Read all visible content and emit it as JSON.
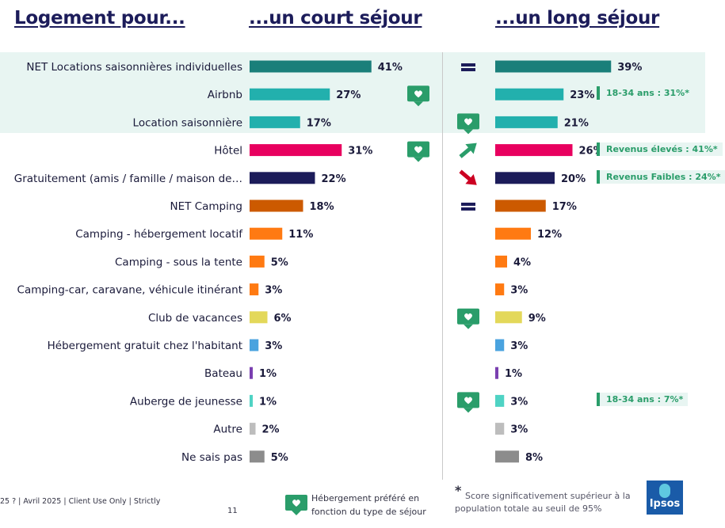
{
  "headers": {
    "left": "Logement pour...",
    "short": "...un court séjour",
    "long": "...un long séjour"
  },
  "chart_data": {
    "type": "bar",
    "orientation": "horizontal",
    "categories": [
      "NET Locations saisonnières individuelles",
      "Airbnb",
      "Location saisonnière",
      "Hôtel",
      "Gratuitement (amis / famille / maison de…",
      "NET Camping",
      "Camping - hébergement locatif",
      "Camping - sous la tente",
      "Camping-car, caravane, véhicule itinérant",
      "Club de vacances",
      "Hébergement gratuit chez l'habitant",
      "Bateau",
      "Auberge de jeunesse",
      "Autre",
      "Ne sais pas"
    ],
    "series": [
      {
        "name": "...un court séjour",
        "values": [
          41,
          27,
          17,
          31,
          22,
          18,
          11,
          5,
          3,
          6,
          3,
          1,
          1,
          2,
          5
        ]
      },
      {
        "name": "...un long séjour",
        "values": [
          39,
          23,
          21,
          26,
          20,
          17,
          12,
          4,
          3,
          9,
          3,
          1,
          3,
          3,
          8
        ]
      }
    ],
    "value_suffix": "%",
    "colors": [
      "#1a7f7a",
      "#22b0ad",
      "#22b0ad",
      "#e8005f",
      "#1c1c5a",
      "#cc5a00",
      "#ff7a12",
      "#ff7a12",
      "#ff7a12",
      "#e3d85a",
      "#4aa3df",
      "#7a3fb0",
      "#4fd3c4",
      "#bdbdbd",
      "#8c8c8c"
    ],
    "highlighted_rows": [
      0,
      1,
      2
    ],
    "short_stay_markers": [
      {
        "row": 1,
        "icon": "heart-chat-icon"
      },
      {
        "row": 3,
        "icon": "heart-chat-icon"
      }
    ],
    "long_stay_markers": [
      {
        "row": 0,
        "icon": "equal-icon"
      },
      {
        "row": 2,
        "icon": "heart-chat-icon"
      },
      {
        "row": 3,
        "icon": "arrow-up-icon"
      },
      {
        "row": 4,
        "icon": "arrow-down-icon"
      },
      {
        "row": 5,
        "icon": "equal-icon"
      },
      {
        "row": 9,
        "icon": "heart-chat-icon"
      },
      {
        "row": 12,
        "icon": "heart-chat-icon"
      }
    ],
    "notes": [
      {
        "row": 1,
        "text": "18-34 ans : 31%*"
      },
      {
        "row": 3,
        "text": "Revenus élevés : 41%*"
      },
      {
        "row": 4,
        "text": "Revenus Faibles : 24%*"
      },
      {
        "row": 12,
        "text": "18-34 ans : 7%*"
      }
    ]
  },
  "footer": {
    "source": "25 ? | Avril 2025 | Client Use Only | Strictly",
    "page_number": "11",
    "legend_line1": "Hébergement préféré en",
    "legend_line2": "fonction du type de séjour",
    "star": "*",
    "note_line1": "Score significativement supérieur à la",
    "note_line2": "population totale au seuil de 95%",
    "logo_text": "Ipsos"
  },
  "icon_colors": {
    "heart": "#2a9d6a",
    "equal": "#1c1c5a",
    "up": "#2a9d6a",
    "down": "#cc0022"
  }
}
